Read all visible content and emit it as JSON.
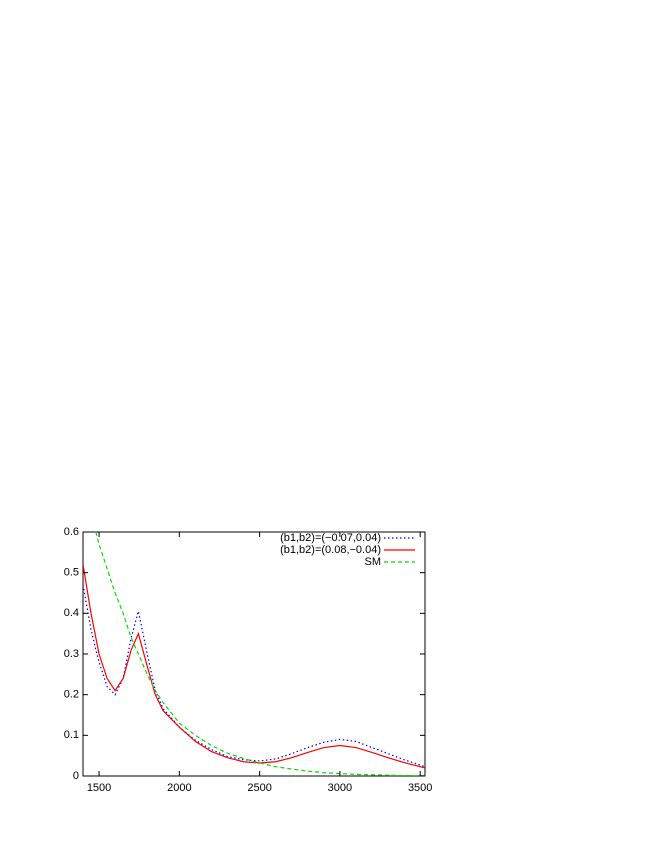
{
  "chart_data": {
    "type": "line",
    "x": [
      1400,
      1450,
      1480,
      1500,
      1550,
      1600,
      1650,
      1700,
      1745,
      1800,
      1850,
      1900,
      2000,
      2100,
      2200,
      2300,
      2400,
      2500,
      2600,
      2700,
      2800,
      2900,
      3000,
      3100,
      3200,
      3300,
      3400,
      3530
    ],
    "series": [
      {
        "name": "(b1,b2)=(−0.07,0.04)",
        "color": "#0000ff",
        "dash": "1.5,2.5",
        "values": [
          0.47,
          0.36,
          0.31,
          0.28,
          0.22,
          0.2,
          0.24,
          0.34,
          0.405,
          0.3,
          0.21,
          0.165,
          0.12,
          0.088,
          0.065,
          0.048,
          0.04,
          0.037,
          0.042,
          0.055,
          0.07,
          0.083,
          0.09,
          0.085,
          0.07,
          0.055,
          0.04,
          0.023
        ]
      },
      {
        "name": "(b1,b2)=(0.08,−0.04)",
        "color": "#ff0000",
        "dash": "none",
        "values": [
          0.52,
          0.4,
          0.34,
          0.3,
          0.24,
          0.21,
          0.24,
          0.31,
          0.35,
          0.27,
          0.2,
          0.16,
          0.12,
          0.085,
          0.06,
          0.045,
          0.035,
          0.032,
          0.035,
          0.045,
          0.058,
          0.07,
          0.075,
          0.07,
          0.058,
          0.045,
          0.033,
          0.02
        ]
      },
      {
        "name": "SM",
        "color": "#00dd00",
        "dash": "4,3",
        "values": [
          null,
          null,
          0.6,
          0.57,
          0.51,
          0.45,
          0.4,
          0.34,
          0.3,
          0.25,
          0.21,
          0.18,
          0.13,
          0.1,
          0.075,
          0.056,
          0.043,
          0.032,
          0.023,
          0.017,
          0.012,
          0.008,
          0.006,
          0.004,
          0.003,
          0.002,
          0.001,
          0.0005
        ]
      }
    ],
    "xlim": [
      1400,
      3530
    ],
    "ylim": [
      0,
      0.6
    ],
    "xticks": [
      1500,
      2000,
      2500,
      3000,
      3500
    ],
    "yticks": [
      0,
      0.1,
      0.2,
      0.3,
      0.4,
      0.5,
      0.6
    ],
    "legend": "upper right"
  }
}
